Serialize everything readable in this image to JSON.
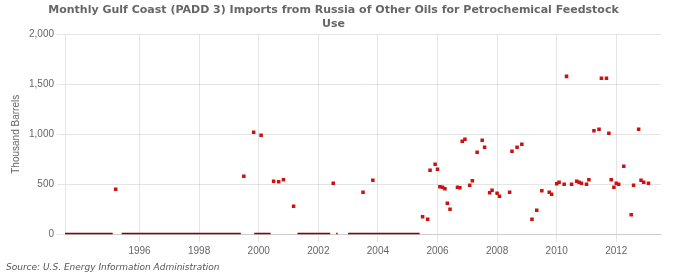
{
  "chart_data": {
    "type": "scatter",
    "title": "Monthly Gulf Coast (PADD 3) Imports from Russia of Other Oils for Petrochemical Feedstock\nUse",
    "ylabel": "Thousand Barrels",
    "annotations": [
      "Source: U.S. Energy Information Administration"
    ],
    "xlim": [
      1993.5,
      2013.5
    ],
    "xticks": [
      1996,
      1998,
      2000,
      2002,
      2004,
      2006,
      2008,
      2010,
      2012
    ],
    "ylim": [
      0,
      2000
    ],
    "yticks": [
      0,
      500,
      {
        "value": 1000,
        "label": "1,000"
      },
      {
        "value": 1500,
        "label": "1,500"
      },
      {
        "value": 2000,
        "label": "2,000"
      }
    ],
    "grid": true,
    "legend": false,
    "series": [
      {
        "type": "scatter",
        "marker": "square",
        "color": "#cc1111",
        "x": [
          1995.2,
          1999.5,
          1999.83,
          2000.08,
          2000.5,
          2000.67,
          2000.83,
          2001.17,
          2002.5,
          2003.5,
          2003.83,
          2005.5,
          2005.67,
          2005.75,
          2005.92,
          2006.0,
          2006.08,
          2006.17,
          2006.25,
          2006.33,
          2006.42,
          2006.67,
          2006.75,
          2006.83,
          2006.92,
          2007.08,
          2007.17,
          2007.33,
          2007.5,
          2007.58,
          2007.75,
          2007.83,
          2008.0,
          2008.08,
          2008.42,
          2008.5,
          2008.67,
          2008.83,
          2009.17,
          2009.33,
          2009.5,
          2009.75,
          2009.83,
          2010.0,
          2010.08,
          2010.25,
          2010.33,
          2010.5,
          2010.67,
          2010.75,
          2010.83,
          2011.0,
          2011.08,
          2011.25,
          2011.42,
          2011.5,
          2011.67,
          2011.75,
          2011.83,
          2011.92,
          2012.0,
          2012.08,
          2012.25,
          2012.5,
          2012.58,
          2012.75,
          2012.83,
          2012.92,
          2013.08
        ],
        "values": [
          450,
          580,
          1020,
          990,
          530,
          525,
          545,
          280,
          510,
          420,
          540,
          175,
          150,
          640,
          700,
          650,
          475,
          470,
          455,
          310,
          250,
          470,
          465,
          930,
          950,
          490,
          535,
          820,
          940,
          870,
          415,
          440,
          410,
          380,
          420,
          830,
          870,
          900,
          150,
          240,
          435,
          420,
          400,
          505,
          520,
          500,
          1580,
          500,
          530,
          520,
          510,
          500,
          545,
          1035,
          1050,
          1560,
          1560,
          1010,
          545,
          470,
          510,
          500,
          680,
          195,
          490,
          1050,
          540,
          520,
          510
        ]
      },
      {
        "type": "line",
        "line_style": "solid",
        "color": "#8b0000",
        "x": [
          1993.5,
          1995.1,
          null,
          1995.4,
          1999.4,
          null,
          1999.85,
          2000.4,
          null,
          2001.3,
          2002.4,
          null,
          2002.6,
          2002.65,
          null,
          2003.0,
          2005.4
        ],
        "values": [
          0,
          0,
          null,
          0,
          0,
          null,
          0,
          0,
          null,
          0,
          0,
          null,
          0,
          0,
          null,
          0,
          0
        ]
      }
    ]
  }
}
